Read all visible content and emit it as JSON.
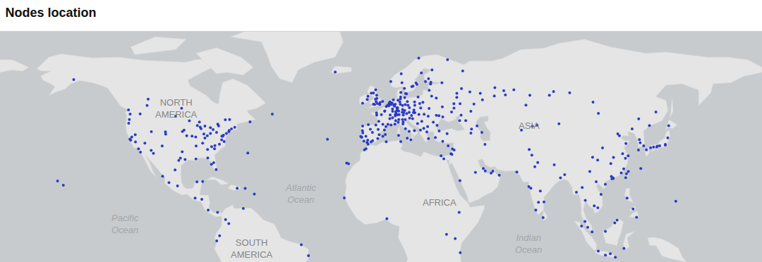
{
  "chart_data": {
    "type": "scatter",
    "title": "Nodes location",
    "color": "#2b3bc6",
    "xlim": [
      -186,
      187
    ],
    "ylim": [
      -10.5,
      80
    ],
    "grid": false,
    "tick_labels": false,
    "continent_labels": [
      {
        "text": "NORTH\nAMERICA",
        "x": -99.6,
        "y": 49.7
      },
      {
        "text": "ASIA",
        "x": 73,
        "y": 43
      },
      {
        "text": "AFRICA",
        "x": 29,
        "y": 12.8
      },
      {
        "text": "SOUTH\nAMERICA",
        "x": -62.6,
        "y": -5.3
      }
    ],
    "ocean_labels": [
      {
        "text": "Atlantic\nOcean",
        "x": -39,
        "y": 16.4
      },
      {
        "text": "Pacific\nOcean",
        "x": -124.6,
        "y": 4.4
      },
      {
        "text": "Indian\nOcean",
        "x": 72.7,
        "y": -3.3
      }
    ],
    "x": [
      -122.4,
      -122,
      -118.2,
      -117.2,
      -122.3,
      -122.7,
      -121.5,
      -119.8,
      -115.1,
      -112,
      -111.9,
      -104.9,
      -105,
      -106.6,
      -97.7,
      -96.8,
      -95.4,
      -98.5,
      -94.6,
      -90.2,
      -93.3,
      -87.6,
      -88,
      -86.2,
      -84.5,
      -83,
      -83,
      -81.7,
      -80,
      -79,
      -77,
      -77.4,
      -76.6,
      -75.2,
      -74,
      -73.8,
      -71.1,
      -72.7,
      -78.6,
      -80.8,
      -84.4,
      -81.4,
      -80.2,
      -82.5,
      -86.8,
      -90,
      -90.1,
      -85.7,
      -79.4,
      -73.6,
      -75.7,
      -114,
      -113.5,
      -123.1,
      -97.1,
      -63.6,
      -52.7,
      -100,
      -96.7,
      -95.9,
      -92,
      -88.4,
      -89.4,
      -85.7,
      -84.3,
      -81,
      -82.4,
      -76.3,
      -77.5,
      -149.9,
      -157.8,
      -155,
      -99.1,
      -103.3,
      -100.3,
      -86.8,
      -89.6,
      -90.5,
      -84.1,
      -79.5,
      -87.2,
      -106.4,
      -66,
      -69.9,
      -61.5,
      -74,
      -75.6,
      -78.5,
      -66.9,
      -38.5,
      -35,
      -25.7,
      -16.3,
      -15.4,
      -64.7,
      -79.9,
      -110.9,
      -119.7,
      -123,
      -117.4,
      -9.1,
      -8.6,
      -8.4,
      -3.7,
      -2,
      2.2,
      -0.4,
      -6,
      -4.4,
      -1.1,
      -0.9,
      -5.7,
      -8.5,
      -3.6,
      -6.9,
      -4.7,
      1.4,
      2.6,
      -7.9,
      -6.3,
      2.35,
      4.8,
      5.4,
      7.3,
      1.4,
      -0.6,
      -1.6,
      -1.7,
      3.1,
      7.75,
      6.2,
      5,
      0.7,
      3.9,
      -0.13,
      -2.2,
      -3.2,
      -4.25,
      -1.9,
      -2.6,
      -1.5,
      -1.6,
      -6.26,
      -8.5,
      -5.9,
      -3.2,
      1.3,
      -1.26,
      0.12,
      -2.1,
      4.9,
      4.48,
      5.12,
      4.35,
      4.4,
      3.7,
      5.5,
      6.13,
      6.57,
      5.9,
      13.4,
      10,
      11.58,
      8.68,
      6.96,
      9.18,
      6.78,
      7.47,
      12.37,
      13.74,
      8.4,
      8.8,
      9.73,
      11.08,
      7.1,
      8.24,
      10.9,
      12.1,
      7.8,
      9.93,
      11.03,
      12.1,
      10.13,
      8.47,
      8.54,
      7.45,
      6.14,
      7.59,
      16.37,
      15.44,
      13.04,
      11.4,
      14.29,
      9.38,
      12.5,
      9.19,
      7.68,
      11.25,
      14.27,
      11.34,
      12.34,
      13.36,
      16.87,
      8.93,
      10.99,
      15.08,
      9.12,
      18.07,
      11.97,
      13,
      10.75,
      5.32,
      10.4,
      12.57,
      10.2,
      24.94,
      23.76,
      25.47,
      17.64,
      16.18,
      18.96,
      22.27,
      15.58,
      20.26,
      -21.9,
      21,
      19.94,
      17.04,
      16.93,
      18.65,
      19.46,
      14.42,
      16.61,
      17.1,
      19.04,
      21.6,
      20.46,
      26.1,
      23.6,
      27.59,
      23.32,
      27.91,
      15.98,
      14.5,
      18.41,
      21.43,
      19.82,
      23.73,
      22.94,
      33.36,
      28.97,
      32.85,
      27.14,
      30.7,
      24.1,
      25.28,
      24.75,
      27.56,
      30.52,
      36.23,
      30.73,
      24.03,
      35.05,
      28.86,
      37.62,
      30.32,
      49.1,
      44,
      60.6,
      82.92,
      73.37,
      39.72,
      38.98,
      39.9,
      50.15,
      56.23,
      65.53,
      84.97,
      92.87,
      104.28,
      131.9,
      135.07,
      40.5,
      33.08,
      44.5,
      46,
      55.96,
      61.4,
      37.6,
      36.19,
      39.2,
      41.97,
      47.5,
      44.8,
      44.51,
      49.87,
      69.24,
      76.95,
      71.45,
      74.6,
      51.39,
      35.2,
      34.78,
      35.5,
      36.3,
      58.4,
      55.27,
      54.4,
      51.53,
      50.59,
      46.72,
      39.17,
      31.24,
      29.92,
      10.18,
      3.06,
      -7.59,
      -6.84,
      -5.8,
      -17.45,
      3.38,
      36.82,
      38.75,
      32.58,
      39.28,
      72.88,
      77.21,
      77.59,
      80.27,
      78.49,
      88.36,
      73.86,
      76.27,
      75.79,
      79.86,
      85.3,
      90.41,
      74.35,
      67,
      73.05,
      100.5,
      98.98,
      103.82,
      101.69,
      100.33,
      106.63,
      105.85,
      108.2,
      104.9,
      96.16,
      106.85,
      110.37,
      112.75,
      115.22,
      120.98,
      123.89,
      125.6,
      114.94,
      116.07,
      110.35,
      98.67,
      119.42,
      114.17,
      113.26,
      114.06,
      121.47,
      120.15,
      118.8,
      116.4,
      117.2,
      104.07,
      106.55,
      108.94,
      114.3,
      113,
      119.3,
      118.09,
      120.38,
      123.43,
      126.64,
      121.56,
      120.3,
      120.68,
      126.98,
      129.08,
      127.38,
      126.53,
      113.54,
      102.71,
      110.32,
      87.62,
      106.92,
      139.69,
      135.5,
      136.91,
      130.4,
      141.35,
      140.87,
      132.46,
      135.77,
      139.64,
      133.92,
      127.68,
      144.8,
      -9.4,
      2.9,
      -8.9,
      -0.1,
      2.3,
      4.85
    ],
    "values": [
      37.8,
      37.4,
      34,
      32.7,
      47.6,
      45.5,
      38.6,
      39.5,
      36.2,
      33.4,
      40.7,
      39.7,
      40.6,
      35.1,
      30.3,
      32.8,
      29.8,
      29.4,
      39.1,
      38.6,
      45,
      41.9,
      42.5,
      39.8,
      39.1,
      40,
      42.3,
      41.5,
      40.4,
      43,
      38.9,
      39,
      39.3,
      40,
      40.7,
      41.2,
      42.4,
      41.8,
      35.8,
      35.2,
      33.7,
      28.5,
      25.8,
      27.9,
      36.2,
      35.1,
      30,
      38.2,
      43.7,
      45.5,
      45.4,
      51,
      53.5,
      49.3,
      49.9,
      44.6,
      47.6,
      46.8,
      40.8,
      41.3,
      39,
      44.5,
      43.1,
      42.9,
      30.4,
      34,
      34.8,
      36.8,
      37.5,
      61.2,
      21.3,
      19.7,
      19.4,
      20.7,
      25.7,
      21.1,
      21,
      14.6,
      9.9,
      9,
      14.1,
      23.2,
      18.4,
      18.5,
      16.2,
      4.6,
      6.2,
      -0.2,
      10.5,
      -3.7,
      -8,
      37.7,
      28.4,
      28.1,
      32.3,
      -2.2,
      32.2,
      36.7,
      44,
      47.7,
      38.7,
      41.1,
      40.2,
      40.4,
      43.3,
      41.4,
      39.5,
      37.4,
      36.7,
      38,
      41.6,
      43.5,
      42.9,
      37.2,
      38.9,
      41.7,
      38.9,
      39.6,
      37,
      36.5,
      48.86,
      45.8,
      43.3,
      43.7,
      43.6,
      44.8,
      47.2,
      48.1,
      50.6,
      48.6,
      48.7,
      47.3,
      47.4,
      43.6,
      51.5,
      53.5,
      55.95,
      55.86,
      52.5,
      51.45,
      53.8,
      55,
      53.35,
      51.9,
      54.6,
      51.5,
      52.6,
      51.75,
      52.2,
      57.15,
      52.37,
      51.92,
      52.09,
      50.85,
      51.2,
      51.05,
      51.44,
      49.6,
      53.2,
      51.98,
      52.5,
      53.55,
      48.14,
      50.11,
      50.94,
      48.78,
      51.23,
      51.5,
      51.34,
      51.05,
      49,
      53.08,
      52.37,
      49.45,
      50.73,
      50.08,
      48.37,
      49,
      48,
      51.5,
      50.98,
      54.09,
      54.32,
      49.49,
      47.37,
      46.95,
      46.2,
      47.56,
      48.21,
      47.07,
      47.8,
      47.27,
      48.3,
      47.42,
      41.9,
      45.46,
      45.07,
      43.77,
      40.85,
      44.49,
      45.44,
      38.12,
      41.12,
      44.41,
      45.44,
      37.5,
      39.22,
      59.33,
      57.7,
      55.6,
      59.91,
      60.39,
      63.43,
      55.68,
      56.15,
      60.17,
      61.5,
      65.01,
      59.86,
      58.59,
      69.65,
      60.45,
      58.41,
      63.83,
      64.14,
      52.23,
      50.06,
      51.11,
      52.41,
      54.35,
      51.76,
      50.09,
      49.2,
      48.15,
      47.5,
      47.53,
      44.79,
      44.43,
      46.77,
      47.16,
      42.7,
      43.21,
      45.81,
      46.05,
      43.85,
      42,
      41.33,
      37.98,
      40.64,
      35.17,
      41.01,
      39.93,
      38.42,
      36.9,
      56.95,
      54.69,
      59.44,
      53.9,
      50.45,
      50,
      46.48,
      49.84,
      48.46,
      47.01,
      55.76,
      59.94,
      55.79,
      56.33,
      56.84,
      55.03,
      54.99,
      47.23,
      45.04,
      57.63,
      53.2,
      58.01,
      57.15,
      56.48,
      56.01,
      52.29,
      43.12,
      48.48,
      64.55,
      68.97,
      48.7,
      51.53,
      54.74,
      55.16,
      54.2,
      51.73,
      51.67,
      45.04,
      42.98,
      41.72,
      40.18,
      40.41,
      41.3,
      43.24,
      51.17,
      42.87,
      35.69,
      31.77,
      32.08,
      33.89,
      33.5,
      23.6,
      25.2,
      24.45,
      25.29,
      26.23,
      24.69,
      21.49,
      30.04,
      31.2,
      36.8,
      36.75,
      33.57,
      34.02,
      35.77,
      14.69,
      6.52,
      -1.29,
      9,
      0.35,
      -6.8,
      19.08,
      28.61,
      12.97,
      13.08,
      17.39,
      22.57,
      18.52,
      9.93,
      26.91,
      6.93,
      27.7,
      23.81,
      31.52,
      24.86,
      33.68,
      13.75,
      18.79,
      1.35,
      3.14,
      5.41,
      10.82,
      21.03,
      16.05,
      11.56,
      16.87,
      -6.21,
      -7.8,
      -7.25,
      -8.65,
      14.6,
      10.32,
      7.07,
      4.89,
      5.98,
      1.55,
      3.59,
      -5.14,
      22.32,
      23.13,
      22.54,
      31.23,
      30.27,
      32.06,
      39.9,
      39.13,
      30.67,
      29.56,
      34.34,
      30.59,
      28.2,
      26.07,
      24.48,
      36.07,
      41.8,
      45.76,
      25.03,
      22.63,
      24.15,
      37.57,
      35.18,
      36.35,
      33.5,
      22.2,
      25.04,
      20.04,
      43.82,
      47.92,
      35.69,
      34.69,
      35.18,
      33.59,
      43.06,
      38.27,
      34.39,
      35.01,
      35.44,
      34.66,
      26.21,
      13.4,
      38.8,
      42.7,
      38.5,
      51.4,
      48.7,
      52.3
    ]
  }
}
